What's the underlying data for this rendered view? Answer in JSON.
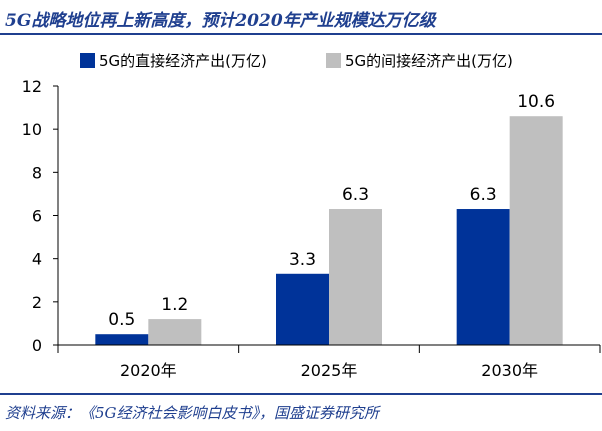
{
  "page": {
    "title": "5G战略地位再上新高度，预计2020年产业规模达万亿级",
    "source": "资料来源：《5G经济社会影响白皮书》，国盛证券研究所"
  },
  "colors": {
    "direct": "#003399",
    "indirect": "#BFBFBF",
    "rule": "#1f3f8f"
  },
  "chart_data": {
    "type": "bar",
    "categories": [
      "2020年",
      "2025年",
      "2030年"
    ],
    "series": [
      {
        "name": "5G的直接经济产出(万亿)",
        "values": [
          0.5,
          3.3,
          6.3
        ],
        "labels": [
          "0.5",
          "3.3",
          "6.3"
        ]
      },
      {
        "name": "5G的间接经济产出(万亿)",
        "values": [
          1.2,
          6.3,
          10.6
        ],
        "labels": [
          "1.2",
          "6.3",
          "10.6"
        ]
      }
    ],
    "yticks": [
      "0",
      "2",
      "4",
      "6",
      "8",
      "10",
      "12"
    ],
    "ylim": [
      0,
      12
    ],
    "legend": "top",
    "grid": false
  }
}
